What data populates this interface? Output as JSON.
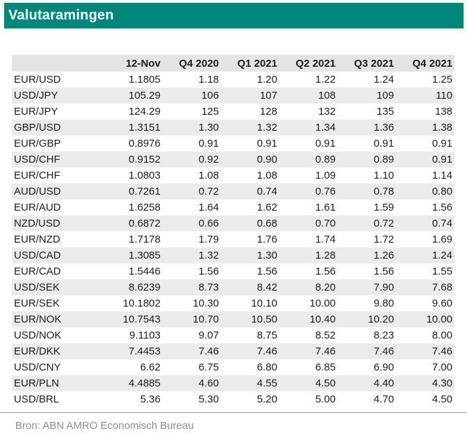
{
  "title": "Valutaramingen",
  "source": "Bron: ABN AMRO Economisch Bureau",
  "colors": {
    "accent_teal": "#00877c",
    "header_row_bg": "#e4e4e4",
    "alt_row_bg": "#ebebeb",
    "body_text": "#1c1c1c",
    "source_text": "#8c8c8c",
    "divider": "#9a9a9a",
    "title_text": "#ffffff"
  },
  "chart_data": {
    "type": "table",
    "title": "Valutaramingen",
    "columns": [
      "",
      "12-Nov",
      "Q4 2020",
      "Q1 2021",
      "Q2 2021",
      "Q3 2021",
      "Q4 2021"
    ],
    "rows": [
      [
        "EUR/USD",
        "1.1805",
        "1.18",
        "1.20",
        "1.22",
        "1.24",
        "1.25"
      ],
      [
        "USD/JPY",
        "105.29",
        "106",
        "107",
        "108",
        "109",
        "110"
      ],
      [
        "EUR/JPY",
        "124.29",
        "125",
        "128",
        "132",
        "135",
        "138"
      ],
      [
        "GBP/USD",
        "1.3151",
        "1.30",
        "1.32",
        "1.34",
        "1.36",
        "1.38"
      ],
      [
        "EUR/GBP",
        "0.8976",
        "0.91",
        "0.91",
        "0.91",
        "0.91",
        "0.91"
      ],
      [
        "USD/CHF",
        "0.9152",
        "0.92",
        "0.90",
        "0.89",
        "0.89",
        "0.91"
      ],
      [
        "EUR/CHF",
        "1.0803",
        "1.08",
        "1.08",
        "1.09",
        "1.10",
        "1.14"
      ],
      [
        "AUD/USD",
        "0.7261",
        "0.72",
        "0.74",
        "0.76",
        "0.78",
        "0.80"
      ],
      [
        "EUR/AUD",
        "1.6258",
        "1.64",
        "1.62",
        "1.61",
        "1.59",
        "1.56"
      ],
      [
        "NZD/USD",
        "0.6872",
        "0.66",
        "0.68",
        "0.70",
        "0.72",
        "0.74"
      ],
      [
        "EUR/NZD",
        "1.7178",
        "1.79",
        "1.76",
        "1.74",
        "1.72",
        "1.69"
      ],
      [
        "USD/CAD",
        "1.3085",
        "1.32",
        "1.30",
        "1.28",
        "1.26",
        "1.24"
      ],
      [
        "EUR/CAD",
        "1.5446",
        "1.56",
        "1.56",
        "1.56",
        "1.56",
        "1.55"
      ],
      [
        "USD/SEK",
        "8.6239",
        "8.73",
        "8.42",
        "8.20",
        "7.90",
        "7.68"
      ],
      [
        "EUR/SEK",
        "10.1802",
        "10.30",
        "10.10",
        "10.00",
        "9.80",
        "9.60"
      ],
      [
        "EUR/NOK",
        "10.7543",
        "10.70",
        "10.50",
        "10.40",
        "10.20",
        "10.00"
      ],
      [
        "USD/NOK",
        "9.1103",
        "9.07",
        "8.75",
        "8.52",
        "8.23",
        "8.00"
      ],
      [
        "EUR/DKK",
        "7.4453",
        "7.46",
        "7.46",
        "7.46",
        "7.46",
        "7.46"
      ],
      [
        "USD/CNY",
        "6.62",
        "6.75",
        "6.80",
        "6.85",
        "6.90",
        "7.00"
      ],
      [
        "EUR/PLN",
        "4.4885",
        "4.60",
        "4.55",
        "4.50",
        "4.40",
        "4.30"
      ],
      [
        "USD/BRL",
        "5.36",
        "5.30",
        "5.20",
        "5.00",
        "4.70",
        "4.50"
      ]
    ]
  }
}
